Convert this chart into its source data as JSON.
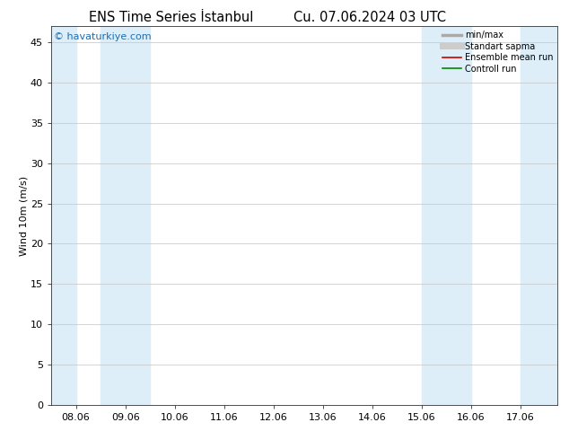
{
  "title_left": "ENS Time Series İstanbul",
  "title_right": "Cu. 07.06.2024 03 UTC",
  "ylabel": "Wind 10m (m/s)",
  "ylim": [
    0,
    47
  ],
  "yticks": [
    0,
    5,
    10,
    15,
    20,
    25,
    30,
    35,
    40,
    45
  ],
  "x_tick_labels": [
    "08.06",
    "09.06",
    "10.06",
    "11.06",
    "12.06",
    "13.06",
    "14.06",
    "15.06",
    "16.06",
    "17.06"
  ],
  "x_tick_positions": [
    0,
    1,
    2,
    3,
    4,
    5,
    6,
    7,
    8,
    9
  ],
  "xlim": [
    -0.5,
    9.75
  ],
  "shade_bands": [
    [
      -0.5,
      0.0
    ],
    [
      0.5,
      1.5
    ],
    [
      7.0,
      8.0
    ],
    [
      9.0,
      9.75
    ]
  ],
  "shade_color": "#ddeef8",
  "background_color": "#ffffff",
  "watermark": "© havaturkiye.com",
  "watermark_color": "#1a6eb5",
  "legend_items": [
    {
      "label": "min/max",
      "color": "#aaaaaa",
      "lw": 2.5,
      "ls": "-"
    },
    {
      "label": "Standart sapma",
      "color": "#cccccc",
      "lw": 5,
      "ls": "-"
    },
    {
      "label": "Ensemble mean run",
      "color": "#cc0000",
      "lw": 1.2,
      "ls": "-"
    },
    {
      "label": "Controll run",
      "color": "#008800",
      "lw": 1.2,
      "ls": "-"
    }
  ],
  "grid_color": "#cccccc",
  "tick_label_fontsize": 8,
  "title_fontsize": 10.5,
  "ylabel_fontsize": 8
}
